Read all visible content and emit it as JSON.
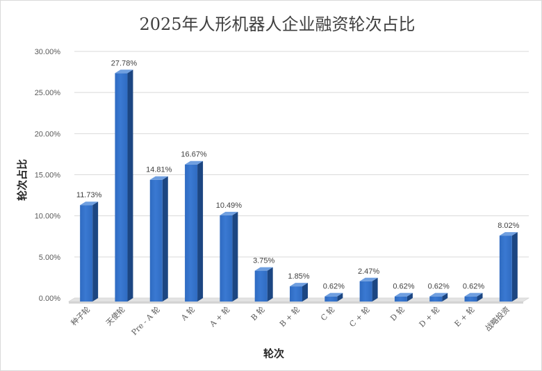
{
  "chart_data": {
    "type": "bar",
    "title": "2025年人形机器人企业融资轮次占比",
    "xlabel": "轮次",
    "ylabel": "轮次占比",
    "categories": [
      "种子轮",
      "天使轮",
      "Pre - A 轮",
      "A 轮",
      "A + 轮",
      "B 轮",
      "B + 轮",
      "C 轮",
      "C + 轮",
      "D 轮",
      "D + 轮",
      "E + 轮",
      "战略投资"
    ],
    "values": [
      11.73,
      27.78,
      14.81,
      16.67,
      10.49,
      3.75,
      1.85,
      0.62,
      2.47,
      0.62,
      0.62,
      0.62,
      8.02
    ],
    "value_labels": [
      "11.73%",
      "27.78%",
      "14.81%",
      "16.67%",
      "10.49%",
      "3.75%",
      "1.85%",
      "0.62%",
      "2.47%",
      "0.62%",
      "0.62%",
      "0.62%",
      "8.02%"
    ],
    "yticks": [
      "0.00%",
      "5.00%",
      "10.00%",
      "15.00%",
      "20.00%",
      "25.00%",
      "30.00%"
    ],
    "ylim": [
      0,
      30
    ],
    "grid": true,
    "legend": "none",
    "style": "3d-column",
    "colors": {
      "bar_front": "#2f6bc1",
      "bar_side": "#1c4682",
      "bar_top": "#6f9fe0",
      "floor": "#e3e3e3"
    }
  }
}
